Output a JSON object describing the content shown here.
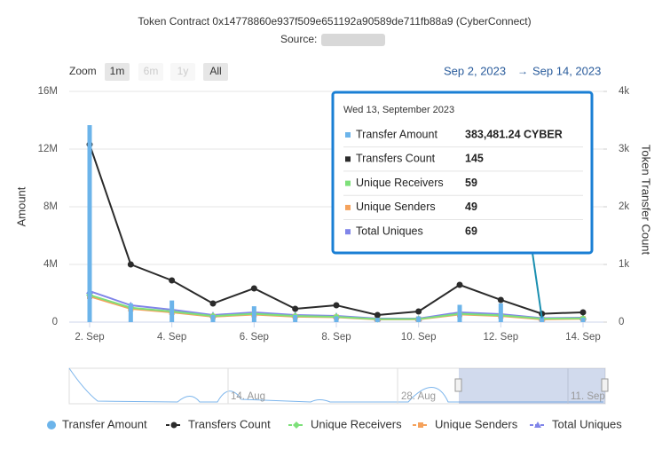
{
  "chart_data": {
    "type": "combo",
    "title": "Token Contract 0x14778860e937f509e651192a90589de711fb88a9 (CyberConnect)",
    "subtitle": "Source:",
    "zoom_label": "Zoom",
    "zoom_buttons": [
      "1m",
      "6m",
      "1y",
      "All"
    ],
    "range_from": "Sep 2, 2023",
    "range_arrow": "→",
    "range_to": "Sep 14, 2023",
    "y_label": "Amount",
    "y2_label": "Token Transfer Count",
    "categories": [
      "2. Sep",
      null,
      "4. Sep",
      null,
      "6. Sep",
      null,
      "8. Sep",
      null,
      "10. Sep",
      null,
      "12. Sep",
      null,
      "14. Sep"
    ],
    "ylim": [
      0,
      16000000
    ],
    "yticks": [
      {
        "value": 0,
        "label": "0"
      },
      {
        "value": 4000000,
        "label": "4M"
      },
      {
        "value": 8000000,
        "label": "8M"
      },
      {
        "value": 12000000,
        "label": "12M"
      },
      {
        "value": 16000000,
        "label": "16M"
      }
    ],
    "y2lim": [
      0,
      4000
    ],
    "y2ticks": [
      {
        "value": 0,
        "label": "0"
      },
      {
        "value": 1000,
        "label": "1k"
      },
      {
        "value": 2000,
        "label": "2k"
      },
      {
        "value": 3000,
        "label": "3k"
      },
      {
        "value": 4000,
        "label": "4k"
      }
    ],
    "grid": true,
    "series": [
      {
        "name": "Transfer Amount",
        "type": "column",
        "color": "#6cb4ea",
        "values": [
          13660000,
          1300000,
          1500000,
          500000,
          1100000,
          500000,
          400000,
          300000,
          400000,
          1200000,
          1300000,
          383481.24,
          300000
        ],
        "value_labels": [
          null,
          null,
          null,
          null,
          null,
          null,
          null,
          null,
          null,
          null,
          null,
          "383,481.24 CYBER",
          null
        ]
      },
      {
        "name": "Transfers Count",
        "type": "line",
        "marker": "circle",
        "axis": "y2",
        "color": "#2b2b2b",
        "values": [
          3080,
          1000,
          723,
          323,
          585,
          231,
          292,
          123,
          185,
          646,
          385,
          145,
          170
        ]
      },
      {
        "name": "Unique Receivers",
        "type": "line",
        "marker": "diamond",
        "axis": "y2",
        "color": "#7ee07a",
        "values": [
          470,
          250,
          185,
          105,
          145,
          105,
          92,
          52,
          53,
          145,
          118,
          59,
          66
        ]
      },
      {
        "name": "Unique Senders",
        "type": "line",
        "marker": "square",
        "axis": "y2",
        "color": "#f5a25c",
        "values": [
          446,
          230,
          170,
          95,
          130,
          95,
          85,
          46,
          48,
          132,
          105,
          49,
          58
        ]
      },
      {
        "name": "Total Uniques",
        "type": "line",
        "marker": "triangle",
        "axis": "y2",
        "color": "#8085e9",
        "values": [
          538,
          292,
          215,
          123,
          170,
          123,
          108,
          62,
          62,
          170,
          138,
          69,
          77
        ]
      }
    ],
    "tooltip_title": "Wed 13, September 2023",
    "tooltip_index": 11,
    "navigator_labels": [
      "14. Aug",
      "28. Aug",
      "11. Sep"
    ]
  }
}
